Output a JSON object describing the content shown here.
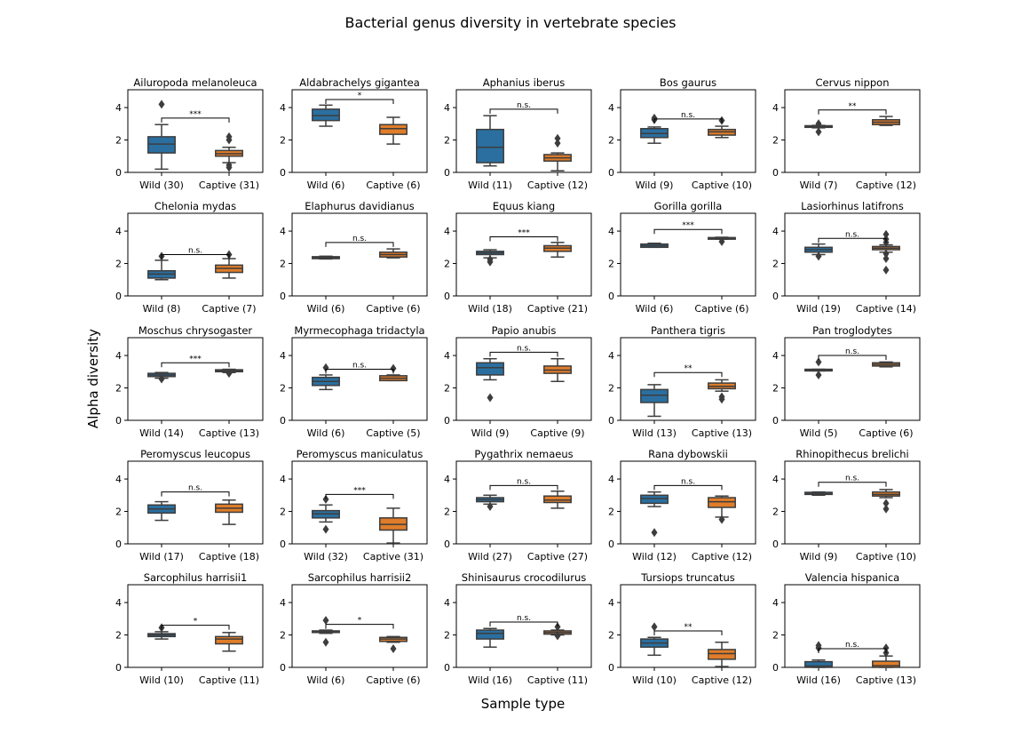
{
  "figure": {
    "title": "Bacterial genus diversity in vertebrate species",
    "ylabel": "Alpha diversity",
    "xlabel": "Sample type"
  },
  "chart_data": {
    "type": "box",
    "ylim": [
      0,
      5.1
    ],
    "yticks": [
      0,
      2,
      4
    ],
    "grid": false,
    "colors": {
      "wild": "#2a6fa0",
      "captive": "#e07d2a",
      "line": "#3d3d3d"
    },
    "panels": [
      {
        "title": "Ailuropoda melanoleuca",
        "groups": [
          {
            "label": "Wild (30)",
            "q1": 1.2,
            "median": 1.75,
            "q3": 2.2,
            "wlow": 0.2,
            "whigh": 2.95,
            "outliers": [
              4.2
            ]
          },
          {
            "label": "Captive (31)",
            "q1": 1.0,
            "median": 1.15,
            "q3": 1.35,
            "wlow": 0.6,
            "whigh": 1.55,
            "outliers": [
              0.3,
              0.45,
              2.0,
              2.2
            ]
          }
        ],
        "sig": "***",
        "sig_y": 3.35
      },
      {
        "title": "Aldabrachelys gigantea",
        "groups": [
          {
            "label": "Wild (6)",
            "q1": 3.2,
            "median": 3.5,
            "q3": 3.9,
            "wlow": 2.85,
            "whigh": 4.15,
            "outliers": []
          },
          {
            "label": "Captive (6)",
            "q1": 2.35,
            "median": 2.7,
            "q3": 2.95,
            "wlow": 1.75,
            "whigh": 3.4,
            "outliers": []
          }
        ],
        "sig": "*",
        "sig_y": 4.5
      },
      {
        "title": "Aphanius iberus",
        "groups": [
          {
            "label": "Wild (11)",
            "q1": 0.6,
            "median": 1.55,
            "q3": 2.65,
            "wlow": 0.4,
            "whigh": 3.5,
            "outliers": []
          },
          {
            "label": "Captive (12)",
            "q1": 0.7,
            "median": 0.9,
            "q3": 1.1,
            "wlow": 0.1,
            "whigh": 1.2,
            "outliers": [
              1.8,
              2.1
            ]
          }
        ],
        "sig": "n.s.",
        "sig_y": 3.9
      },
      {
        "title": "Bos gaurus",
        "groups": [
          {
            "label": "Wild (9)",
            "q1": 2.15,
            "median": 2.4,
            "q3": 2.7,
            "wlow": 1.8,
            "whigh": 2.8,
            "outliers": [
              3.25,
              3.35
            ]
          },
          {
            "label": "Captive (10)",
            "q1": 2.3,
            "median": 2.5,
            "q3": 2.65,
            "wlow": 2.15,
            "whigh": 2.85,
            "outliers": [
              3.2
            ]
          }
        ],
        "sig": "n.s.",
        "sig_y": 3.3
      },
      {
        "title": "Cervus nippon",
        "groups": [
          {
            "label": "Wild (7)",
            "q1": 2.78,
            "median": 2.82,
            "q3": 2.88,
            "wlow": 2.75,
            "whigh": 2.9,
            "outliers": [
              2.5,
              3.0
            ]
          },
          {
            "label": "Captive (12)",
            "q1": 2.95,
            "median": 3.1,
            "q3": 3.25,
            "wlow": 2.9,
            "whigh": 3.45,
            "outliers": []
          }
        ],
        "sig": "**",
        "sig_y": 3.85
      },
      {
        "title": "Chelonia mydas",
        "groups": [
          {
            "label": "Wild (8)",
            "q1": 1.1,
            "median": 1.35,
            "q3": 1.55,
            "wlow": 1.0,
            "whigh": 2.2,
            "outliers": [
              2.45
            ]
          },
          {
            "label": "Captive (7)",
            "q1": 1.45,
            "median": 1.7,
            "q3": 1.9,
            "wlow": 1.1,
            "whigh": 2.3,
            "outliers": [
              2.55
            ]
          }
        ],
        "sig": "n.s.",
        "sig_y": 2.55
      },
      {
        "title": "Elaphurus davidianus",
        "groups": [
          {
            "label": "Wild (6)",
            "q1": 2.3,
            "median": 2.35,
            "q3": 2.42,
            "wlow": 2.28,
            "whigh": 2.45,
            "outliers": []
          },
          {
            "label": "Captive (6)",
            "q1": 2.4,
            "median": 2.55,
            "q3": 2.7,
            "wlow": 2.35,
            "whigh": 2.9,
            "outliers": []
          }
        ],
        "sig": "n.s.",
        "sig_y": 3.3
      },
      {
        "title": "Equus kiang",
        "groups": [
          {
            "label": "Wild (18)",
            "q1": 2.55,
            "median": 2.65,
            "q3": 2.75,
            "wlow": 2.35,
            "whigh": 2.85,
            "outliers": [
              2.1,
              2.25
            ]
          },
          {
            "label": "Captive (21)",
            "q1": 2.75,
            "median": 2.95,
            "q3": 3.1,
            "wlow": 2.4,
            "whigh": 3.3,
            "outliers": []
          }
        ],
        "sig": "***",
        "sig_y": 3.65
      },
      {
        "title": "Gorilla gorilla",
        "groups": [
          {
            "label": "Wild (6)",
            "q1": 3.0,
            "median": 3.1,
            "q3": 3.2,
            "wlow": 3.0,
            "whigh": 3.25,
            "outliers": []
          },
          {
            "label": "Captive (6)",
            "q1": 3.5,
            "median": 3.55,
            "q3": 3.6,
            "wlow": 3.5,
            "whigh": 3.62,
            "outliers": [
              3.35
            ]
          }
        ],
        "sig": "***",
        "sig_y": 4.1
      },
      {
        "title": "Lasiorhinus latifrons",
        "groups": [
          {
            "label": "Wild (19)",
            "q1": 2.7,
            "median": 2.85,
            "q3": 3.0,
            "wlow": 2.55,
            "whigh": 3.2,
            "outliers": [
              2.45
            ]
          },
          {
            "label": "Captive (14)",
            "q1": 2.85,
            "median": 2.95,
            "q3": 3.05,
            "wlow": 2.7,
            "whigh": 3.15,
            "outliers": [
              1.6,
              2.3,
              2.6,
              3.3,
              3.5,
              3.8
            ]
          }
        ],
        "sig": "n.s.",
        "sig_y": 3.55
      },
      {
        "title": "Moschus chrysogaster",
        "groups": [
          {
            "label": "Wild (14)",
            "q1": 2.7,
            "median": 2.8,
            "q3": 2.9,
            "wlow": 2.6,
            "whigh": 2.95,
            "outliers": [
              2.55
            ]
          },
          {
            "label": "Captive (13)",
            "q1": 3.0,
            "median": 3.05,
            "q3": 3.12,
            "wlow": 2.95,
            "whigh": 3.15,
            "outliers": [
              2.9
            ]
          }
        ],
        "sig": "***",
        "sig_y": 3.55
      },
      {
        "title": "Myrmecophaga tridactyla",
        "groups": [
          {
            "label": "Wild (6)",
            "q1": 2.15,
            "median": 2.4,
            "q3": 2.65,
            "wlow": 1.9,
            "whigh": 2.8,
            "outliers": [
              3.25
            ]
          },
          {
            "label": "Captive (5)",
            "q1": 2.45,
            "median": 2.6,
            "q3": 2.75,
            "wlow": 2.45,
            "whigh": 2.8,
            "outliers": [
              3.2
            ]
          }
        ],
        "sig": "n.s.",
        "sig_y": 3.15
      },
      {
        "title": "Papio anubis",
        "groups": [
          {
            "label": "Wild (9)",
            "q1": 2.8,
            "median": 3.25,
            "q3": 3.55,
            "wlow": 2.5,
            "whigh": 3.8,
            "outliers": [
              1.4
            ]
          },
          {
            "label": "Captive (9)",
            "q1": 2.9,
            "median": 3.1,
            "q3": 3.35,
            "wlow": 2.4,
            "whigh": 3.8,
            "outliers": []
          }
        ],
        "sig": "n.s.",
        "sig_y": 4.2
      },
      {
        "title": "Panthera tigris",
        "groups": [
          {
            "label": "Wild (13)",
            "q1": 1.1,
            "median": 1.55,
            "q3": 1.9,
            "wlow": 0.25,
            "whigh": 2.2,
            "outliers": []
          },
          {
            "label": "Captive (13)",
            "q1": 1.95,
            "median": 2.1,
            "q3": 2.3,
            "wlow": 1.8,
            "whigh": 2.5,
            "outliers": [
              1.3,
              1.45
            ]
          }
        ],
        "sig": "**",
        "sig_y": 2.95
      },
      {
        "title": "Pan troglodytes",
        "groups": [
          {
            "label": "Wild (5)",
            "q1": 3.05,
            "median": 3.1,
            "q3": 3.15,
            "wlow": 3.05,
            "whigh": 3.15,
            "outliers": [
              2.8,
              3.6
            ]
          },
          {
            "label": "Captive (6)",
            "q1": 3.35,
            "median": 3.45,
            "q3": 3.55,
            "wlow": 3.3,
            "whigh": 3.6,
            "outliers": []
          }
        ],
        "sig": "n.s.",
        "sig_y": 4.0
      },
      {
        "title": "Peromyscus leucopus",
        "groups": [
          {
            "label": "Wild (17)",
            "q1": 1.9,
            "median": 2.15,
            "q3": 2.4,
            "wlow": 1.45,
            "whigh": 2.6,
            "outliers": []
          },
          {
            "label": "Captive (18)",
            "q1": 1.95,
            "median": 2.2,
            "q3": 2.45,
            "wlow": 1.2,
            "whigh": 2.7,
            "outliers": []
          }
        ],
        "sig": "n.s.",
        "sig_y": 3.2
      },
      {
        "title": "Peromyscus maniculatus",
        "groups": [
          {
            "label": "Wild (32)",
            "q1": 1.6,
            "median": 1.85,
            "q3": 2.05,
            "wlow": 1.35,
            "whigh": 2.4,
            "outliers": [
              0.9,
              2.75
            ]
          },
          {
            "label": "Captive (31)",
            "q1": 0.85,
            "median": 1.2,
            "q3": 1.6,
            "wlow": 0.05,
            "whigh": 2.2,
            "outliers": []
          }
        ],
        "sig": "***",
        "sig_y": 3.05
      },
      {
        "title": "Pygathrix nemaeus",
        "groups": [
          {
            "label": "Wild (27)",
            "q1": 2.6,
            "median": 2.72,
            "q3": 2.85,
            "wlow": 2.45,
            "whigh": 3.0,
            "outliers": [
              2.3
            ]
          },
          {
            "label": "Captive (27)",
            "q1": 2.55,
            "median": 2.7,
            "q3": 2.95,
            "wlow": 2.2,
            "whigh": 3.25,
            "outliers": []
          }
        ],
        "sig": "n.s.",
        "sig_y": 3.6
      },
      {
        "title": "Rana dybowskii",
        "groups": [
          {
            "label": "Wild (12)",
            "q1": 2.5,
            "median": 2.8,
            "q3": 3.0,
            "wlow": 2.3,
            "whigh": 3.2,
            "outliers": [
              0.7
            ]
          },
          {
            "label": "Captive (12)",
            "q1": 2.25,
            "median": 2.6,
            "q3": 2.85,
            "wlow": 1.65,
            "whigh": 2.95,
            "outliers": [
              1.5
            ]
          }
        ],
        "sig": "n.s.",
        "sig_y": 3.6
      },
      {
        "title": "Rhinopithecus brelichi",
        "groups": [
          {
            "label": "Wild (9)",
            "q1": 3.05,
            "median": 3.1,
            "q3": 3.18,
            "wlow": 3.0,
            "whigh": 3.2,
            "outliers": []
          },
          {
            "label": "Captive (10)",
            "q1": 2.95,
            "median": 3.05,
            "q3": 3.2,
            "wlow": 2.85,
            "whigh": 3.35,
            "outliers": [
              2.15,
              2.5
            ]
          }
        ],
        "sig": "n.s.",
        "sig_y": 3.8
      },
      {
        "title": "Sarcophilus harrisii1",
        "groups": [
          {
            "label": "Wild (10)",
            "q1": 1.9,
            "median": 2.0,
            "q3": 2.08,
            "wlow": 1.75,
            "whigh": 2.2,
            "outliers": [
              2.45
            ]
          },
          {
            "label": "Captive (11)",
            "q1": 1.45,
            "median": 1.75,
            "q3": 1.9,
            "wlow": 1.0,
            "whigh": 2.15,
            "outliers": []
          }
        ],
        "sig": "*",
        "sig_y": 2.6
      },
      {
        "title": "Sarcophilus harrisii2",
        "groups": [
          {
            "label": "Wild (6)",
            "q1": 2.15,
            "median": 2.2,
            "q3": 2.25,
            "wlow": 2.1,
            "whigh": 2.3,
            "outliers": [
              1.55,
              2.9
            ]
          },
          {
            "label": "Captive (6)",
            "q1": 1.6,
            "median": 1.75,
            "q3": 1.85,
            "wlow": 1.55,
            "whigh": 1.9,
            "outliers": [
              1.15
            ]
          }
        ],
        "sig": "*",
        "sig_y": 2.65
      },
      {
        "title": "Shinisaurus crocodilurus",
        "groups": [
          {
            "label": "Wild (16)",
            "q1": 1.75,
            "median": 2.1,
            "q3": 2.3,
            "wlow": 1.25,
            "whigh": 2.4,
            "outliers": []
          },
          {
            "label": "Captive (11)",
            "q1": 2.05,
            "median": 2.15,
            "q3": 2.25,
            "wlow": 2.0,
            "whigh": 2.3,
            "outliers": [
              1.95,
              2.5
            ]
          }
        ],
        "sig": "n.s.",
        "sig_y": 2.8
      },
      {
        "title": "Tursiops truncatus",
        "groups": [
          {
            "label": "Wild (10)",
            "q1": 1.25,
            "median": 1.5,
            "q3": 1.75,
            "wlow": 0.75,
            "whigh": 1.85,
            "outliers": [
              2.5
            ]
          },
          {
            "label": "Captive (12)",
            "q1": 0.5,
            "median": 0.85,
            "q3": 1.1,
            "wlow": 0.05,
            "whigh": 1.55,
            "outliers": []
          }
        ],
        "sig": "**",
        "sig_y": 2.25
      },
      {
        "title": "Valencia hispanica",
        "groups": [
          {
            "label": "Wild (16)",
            "q1": 0.0,
            "median": 0.08,
            "q3": 0.35,
            "wlow": 0.0,
            "whigh": 0.45,
            "outliers": [
              1.2,
              1.35
            ]
          },
          {
            "label": "Captive (13)",
            "q1": 0.0,
            "median": 0.1,
            "q3": 0.38,
            "wlow": 0.0,
            "whigh": 0.7,
            "outliers": [
              0.9,
              1.2
            ]
          }
        ],
        "sig": "n.s.",
        "sig_y": 1.15
      }
    ]
  }
}
